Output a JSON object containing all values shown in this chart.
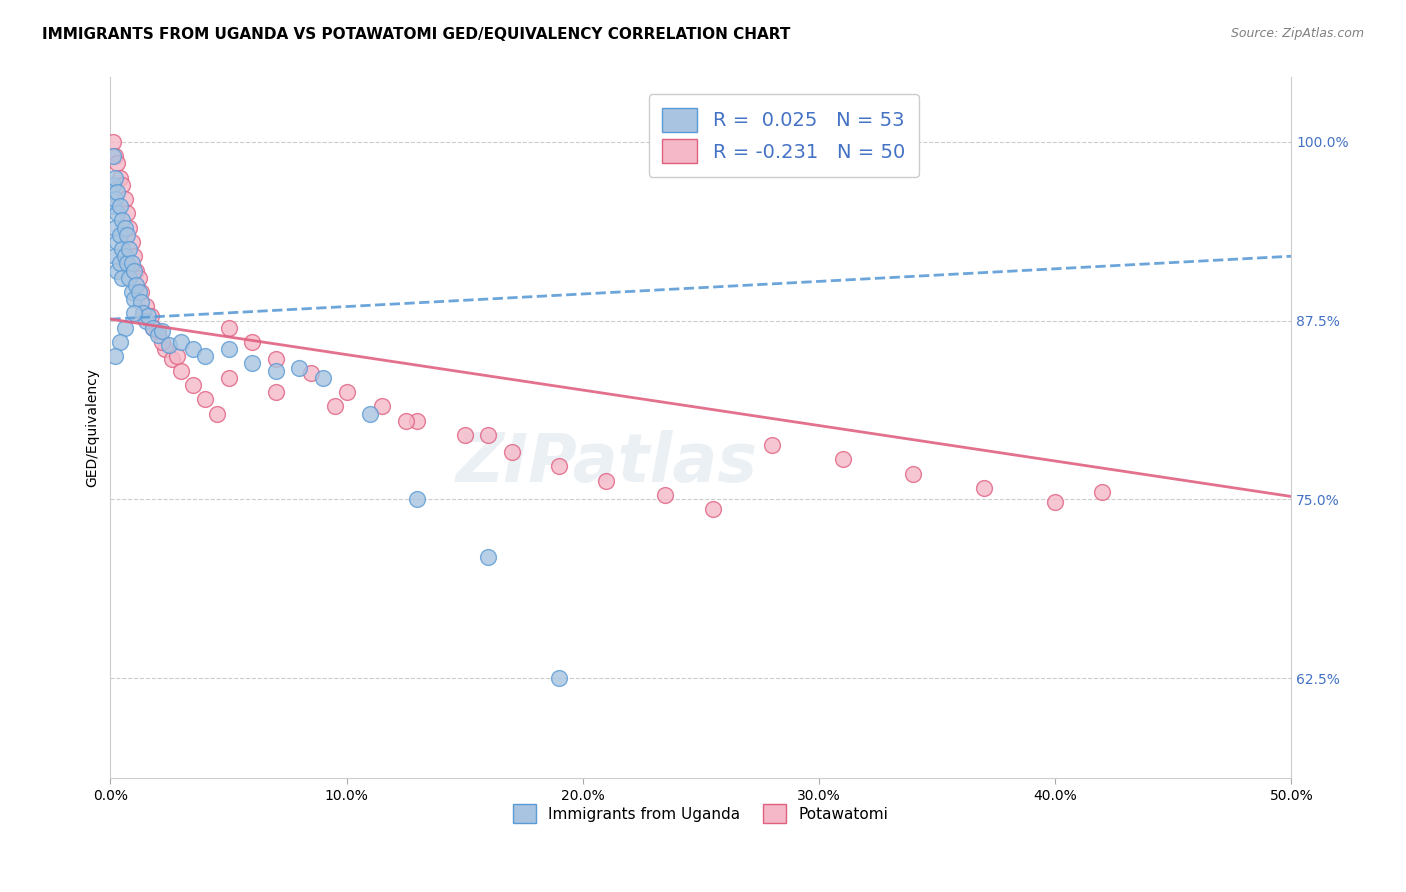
{
  "title": "IMMIGRANTS FROM UGANDA VS POTAWATOMI GED/EQUIVALENCY CORRELATION CHART",
  "source": "Source: ZipAtlas.com",
  "ylabel": "GED/Equivalency",
  "ytick_values": [
    1.0,
    0.875,
    0.75,
    0.625
  ],
  "xmin": 0.0,
  "xmax": 0.5,
  "ymin": 0.555,
  "ymax": 1.045,
  "blue_line_color": "#5b9bd5",
  "pink_line_color": "#e06080",
  "blue_face": "#a8c4e0",
  "blue_edge": "#5b9bd5",
  "pink_face": "#f4b8c8",
  "pink_edge": "#e06080",
  "watermark": "ZIPatlas",
  "title_fontsize": 11,
  "source_fontsize": 9,
  "axis_label_fontsize": 10,
  "tick_fontsize": 10,
  "blue_R": "0.025",
  "blue_N": "53",
  "pink_R": "-0.231",
  "pink_N": "50",
  "blue_x": [
    0.001,
    0.001,
    0.001,
    0.002,
    0.002,
    0.002,
    0.002,
    0.003,
    0.003,
    0.003,
    0.003,
    0.004,
    0.004,
    0.004,
    0.005,
    0.005,
    0.005,
    0.006,
    0.006,
    0.007,
    0.007,
    0.008,
    0.008,
    0.009,
    0.009,
    0.01,
    0.01,
    0.011,
    0.012,
    0.013,
    0.014,
    0.015,
    0.016,
    0.018,
    0.02,
    0.022,
    0.025,
    0.03,
    0.035,
    0.04,
    0.05,
    0.06,
    0.07,
    0.08,
    0.09,
    0.11,
    0.13,
    0.16,
    0.19,
    0.01,
    0.006,
    0.004,
    0.002
  ],
  "blue_y": [
    0.99,
    0.97,
    0.955,
    0.975,
    0.96,
    0.94,
    0.92,
    0.965,
    0.95,
    0.93,
    0.91,
    0.955,
    0.935,
    0.915,
    0.945,
    0.925,
    0.905,
    0.94,
    0.92,
    0.935,
    0.915,
    0.925,
    0.905,
    0.915,
    0.895,
    0.91,
    0.89,
    0.9,
    0.895,
    0.888,
    0.88,
    0.875,
    0.878,
    0.87,
    0.865,
    0.868,
    0.858,
    0.86,
    0.855,
    0.85,
    0.855,
    0.845,
    0.84,
    0.842,
    0.835,
    0.81,
    0.75,
    0.71,
    0.625,
    0.88,
    0.87,
    0.86,
    0.85
  ],
  "pink_x": [
    0.001,
    0.002,
    0.003,
    0.004,
    0.005,
    0.006,
    0.007,
    0.008,
    0.009,
    0.01,
    0.011,
    0.012,
    0.013,
    0.015,
    0.017,
    0.02,
    0.023,
    0.026,
    0.03,
    0.035,
    0.04,
    0.045,
    0.05,
    0.06,
    0.07,
    0.085,
    0.1,
    0.115,
    0.13,
    0.15,
    0.17,
    0.19,
    0.21,
    0.235,
    0.255,
    0.28,
    0.31,
    0.34,
    0.37,
    0.4,
    0.014,
    0.018,
    0.022,
    0.028,
    0.05,
    0.07,
    0.095,
    0.125,
    0.16,
    0.42
  ],
  "pink_y": [
    1.0,
    0.99,
    0.985,
    0.975,
    0.97,
    0.96,
    0.95,
    0.94,
    0.93,
    0.92,
    0.91,
    0.905,
    0.895,
    0.885,
    0.878,
    0.868,
    0.855,
    0.848,
    0.84,
    0.83,
    0.82,
    0.81,
    0.87,
    0.86,
    0.848,
    0.838,
    0.825,
    0.815,
    0.805,
    0.795,
    0.783,
    0.773,
    0.763,
    0.753,
    0.743,
    0.788,
    0.778,
    0.768,
    0.758,
    0.748,
    0.88,
    0.87,
    0.86,
    0.85,
    0.835,
    0.825,
    0.815,
    0.805,
    0.795,
    0.755
  ],
  "blue_trend_x": [
    0.0,
    0.5
  ],
  "blue_trend_y": [
    0.876,
    0.92
  ],
  "pink_trend_x": [
    0.0,
    0.5
  ],
  "pink_trend_y": [
    0.876,
    0.752
  ]
}
